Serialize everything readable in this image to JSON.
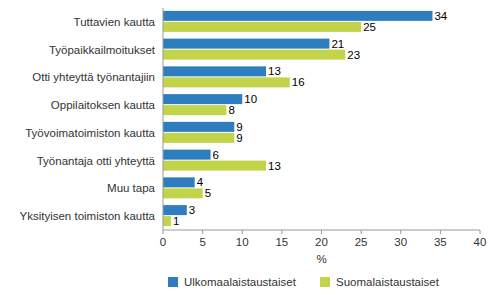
{
  "chart_data": {
    "type": "bar",
    "orientation": "horizontal",
    "categories": [
      "Tuttavien kautta",
      "Työpaikkailmoitukset",
      "Otti yhteyttä työnantajiin",
      "Oppilaitoksen kautta",
      "Työvoimatoimiston kautta",
      "Työnantaja otti yhteyttä",
      "Muu tapa",
      "Yksityisen toimiston kautta"
    ],
    "series": [
      {
        "name": "Ulkomaalaistaustaiset",
        "color": "#2e7ebf",
        "values": [
          34,
          21,
          13,
          10,
          9,
          6,
          4,
          3
        ]
      },
      {
        "name": "Suomalaistaustaiset",
        "color": "#c2d44a",
        "values": [
          25,
          23,
          16,
          8,
          9,
          13,
          5,
          1
        ]
      }
    ],
    "x_label": "%",
    "xlim": [
      0,
      40
    ],
    "xticks": [
      0,
      5,
      10,
      15,
      20,
      25,
      30,
      35,
      40
    ],
    "grid": false,
    "data_labels": true,
    "legend": "bottom"
  }
}
